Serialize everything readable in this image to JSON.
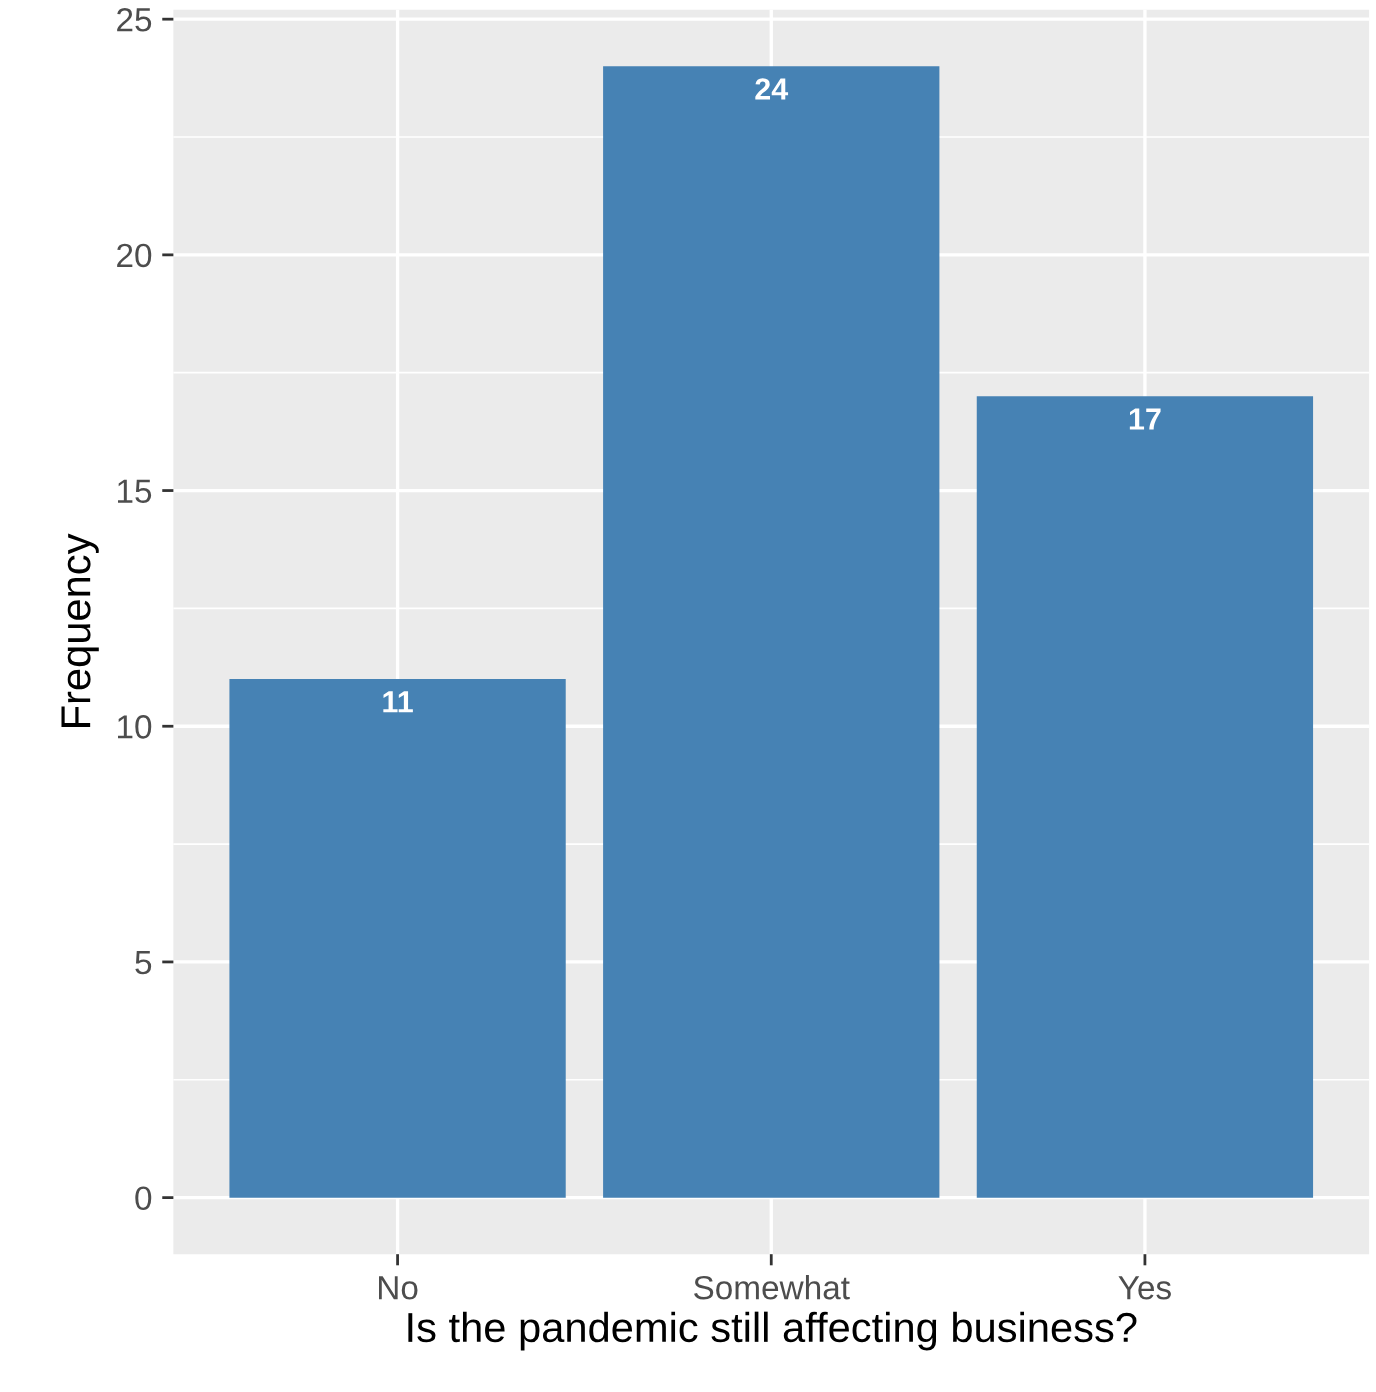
{
  "chart_data": {
    "type": "bar",
    "xlabel": "Is the pandemic still affecting business?",
    "ylabel": "Frequency",
    "categories": [
      "No",
      "Somewhat",
      "Yes"
    ],
    "values": [
      11,
      24,
      17
    ],
    "color": "#4682b4",
    "ylim": [
      -1.2,
      25.2
    ],
    "yticks": [
      0,
      5,
      10,
      15,
      20,
      25
    ],
    "grid": true,
    "data_labels": true
  }
}
